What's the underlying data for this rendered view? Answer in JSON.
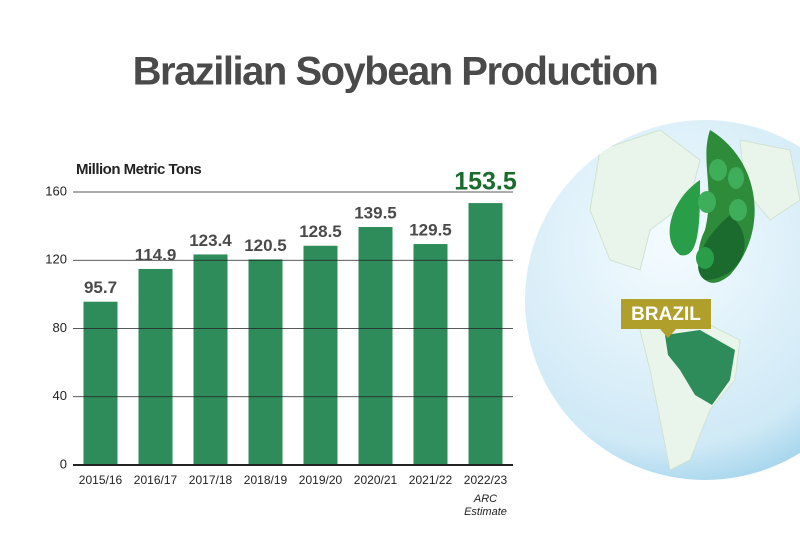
{
  "chart_data": {
    "type": "bar",
    "title": "Brazilian Soybean Production",
    "y_label": "Million Metric Tons",
    "categories": [
      "2015/16",
      "2016/17",
      "2017/18",
      "2018/19",
      "2019/20",
      "2020/21",
      "2021/22",
      "2022/23"
    ],
    "values": [
      95.7,
      114.9,
      123.4,
      120.5,
      128.5,
      139.5,
      129.5,
      153.5
    ],
    "color": "#2e8b5a",
    "highlight_color": "#1b6b2e",
    "ylim": [
      0,
      160
    ],
    "yticks": [
      0,
      40,
      80,
      120,
      160
    ],
    "grid": true,
    "annotation": [
      "ARC",
      "Estimate"
    ],
    "map_label": "BRAZIL"
  }
}
